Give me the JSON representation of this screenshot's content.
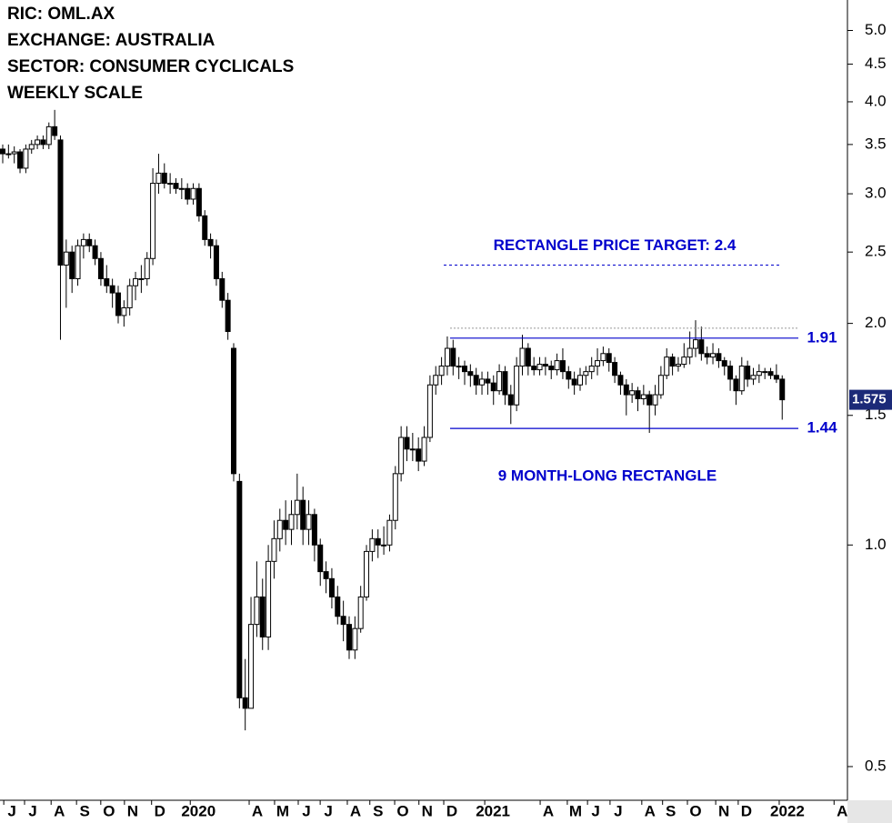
{
  "header": {
    "lines": [
      "RIC: OML.AX",
      "EXCHANGE: AUSTRALIA",
      "SECTOR: CONSUMER CYCLICALS",
      "WEEKLY SCALE"
    ]
  },
  "chart_data": {
    "type": "candlestick",
    "log_scale": true,
    "up_color": "#ffffff",
    "down_color": "#000000",
    "level_color": "#0000cc",
    "xlim": [
      -0.47,
      146.3
    ],
    "ylim": [
      0.45,
      5.5
    ],
    "yticks": [
      {
        "value": 0.5,
        "label": "0.5"
      },
      {
        "value": 1,
        "label": "1.0"
      },
      {
        "value": 1.5,
        "label": "1.5"
      },
      {
        "value": 2,
        "label": "2.0"
      },
      {
        "value": 2.5,
        "label": "2.5"
      },
      {
        "value": 3,
        "label": "3.0"
      },
      {
        "value": 3.5,
        "label": "3.5"
      },
      {
        "value": 4,
        "label": "4.0"
      },
      {
        "value": 4.5,
        "label": "4.5"
      },
      {
        "value": 5,
        "label": "5.0"
      }
    ],
    "xticks": [
      {
        "value": 1.6,
        "label": "J"
      },
      {
        "value": 5.2,
        "label": "J"
      },
      {
        "value": 9.8,
        "label": "A"
      },
      {
        "value": 14.2,
        "label": "S"
      },
      {
        "value": 18.4,
        "label": "O"
      },
      {
        "value": 22.5,
        "label": "N"
      },
      {
        "value": 27.2,
        "label": "D"
      },
      {
        "value": 33.9,
        "label": "2020"
      },
      {
        "value": 44.1,
        "label": "A"
      },
      {
        "value": 48.5,
        "label": "M"
      },
      {
        "value": 52.6,
        "label": "J"
      },
      {
        "value": 56.4,
        "label": "J"
      },
      {
        "value": 61.1,
        "label": "A"
      },
      {
        "value": 65.0,
        "label": "S"
      },
      {
        "value": 69.3,
        "label": "O"
      },
      {
        "value": 73.5,
        "label": "N"
      },
      {
        "value": 77.8,
        "label": "D"
      },
      {
        "value": 84.9,
        "label": "2021"
      },
      {
        "value": 94.5,
        "label": "A"
      },
      {
        "value": 99.2,
        "label": "M"
      },
      {
        "value": 102.7,
        "label": "J"
      },
      {
        "value": 106.6,
        "label": "J"
      },
      {
        "value": 112.1,
        "label": "A"
      },
      {
        "value": 115.7,
        "label": "S"
      },
      {
        "value": 120.0,
        "label": "O"
      },
      {
        "value": 124.9,
        "label": "N"
      },
      {
        "value": 128.8,
        "label": "D"
      },
      {
        "value": 135.9,
        "label": "2022"
      },
      {
        "value": 145.4,
        "label": "A"
      }
    ],
    "candles": [
      [
        3.45,
        3.5,
        3.3,
        3.4
      ],
      [
        3.4,
        3.5,
        3.35,
        3.4
      ],
      [
        3.4,
        3.48,
        3.3,
        3.42
      ],
      [
        3.42,
        3.45,
        3.2,
        3.25
      ],
      [
        3.25,
        3.5,
        3.2,
        3.45
      ],
      [
        3.45,
        3.55,
        3.4,
        3.5
      ],
      [
        3.5,
        3.6,
        3.45,
        3.55
      ],
      [
        3.55,
        3.6,
        3.45,
        3.5
      ],
      [
        3.5,
        3.75,
        3.45,
        3.7
      ],
      [
        3.7,
        3.9,
        3.55,
        3.6
      ],
      [
        3.55,
        3.6,
        1.9,
        2.4
      ],
      [
        2.4,
        2.6,
        2.1,
        2.5
      ],
      [
        2.5,
        2.55,
        2.2,
        2.3
      ],
      [
        2.3,
        2.6,
        2.25,
        2.55
      ],
      [
        2.55,
        2.65,
        2.45,
        2.6
      ],
      [
        2.6,
        2.65,
        2.5,
        2.55
      ],
      [
        2.55,
        2.6,
        2.4,
        2.45
      ],
      [
        2.45,
        2.5,
        2.25,
        2.3
      ],
      [
        2.3,
        2.4,
        2.2,
        2.25
      ],
      [
        2.25,
        2.3,
        2.1,
        2.2
      ],
      [
        2.2,
        2.25,
        2.0,
        2.05
      ],
      [
        2.05,
        2.15,
        1.98,
        2.1
      ],
      [
        2.1,
        2.3,
        2.05,
        2.25
      ],
      [
        2.25,
        2.35,
        2.15,
        2.3
      ],
      [
        2.3,
        2.4,
        2.2,
        2.3
      ],
      [
        2.3,
        2.5,
        2.25,
        2.45
      ],
      [
        2.45,
        3.25,
        2.4,
        3.1
      ],
      [
        3.1,
        3.4,
        3.0,
        3.2
      ],
      [
        3.2,
        3.3,
        3.05,
        3.1
      ],
      [
        3.1,
        3.2,
        3.0,
        3.1
      ],
      [
        3.1,
        3.15,
        3.0,
        3.05
      ],
      [
        3.05,
        3.15,
        2.95,
        3.05
      ],
      [
        3.05,
        3.1,
        2.9,
        2.95
      ],
      [
        2.95,
        3.1,
        2.9,
        3.05
      ],
      [
        3.05,
        3.1,
        2.75,
        2.8
      ],
      [
        2.8,
        2.85,
        2.55,
        2.6
      ],
      [
        2.6,
        2.65,
        2.45,
        2.55
      ],
      [
        2.55,
        2.6,
        2.25,
        2.3
      ],
      [
        2.3,
        2.35,
        2.1,
        2.15
      ],
      [
        2.15,
        2.2,
        1.9,
        1.95
      ],
      [
        1.85,
        1.88,
        1.22,
        1.25
      ],
      [
        1.22,
        1.25,
        0.6,
        0.62
      ],
      [
        0.62,
        0.7,
        0.56,
        0.6
      ],
      [
        0.6,
        0.85,
        0.6,
        0.78
      ],
      [
        0.78,
        0.95,
        0.75,
        0.85
      ],
      [
        0.85,
        0.9,
        0.72,
        0.75
      ],
      [
        0.75,
        1.0,
        0.72,
        0.95
      ],
      [
        0.95,
        1.08,
        0.9,
        1.02
      ],
      [
        1.02,
        1.12,
        0.98,
        1.08
      ],
      [
        1.08,
        1.15,
        1.0,
        1.05
      ],
      [
        1.05,
        1.15,
        1.0,
        1.1
      ],
      [
        1.1,
        1.25,
        1.05,
        1.15
      ],
      [
        1.15,
        1.2,
        1.0,
        1.05
      ],
      [
        1.05,
        1.15,
        1.0,
        1.1
      ],
      [
        1.1,
        1.12,
        0.95,
        1.0
      ],
      [
        1.0,
        1.02,
        0.88,
        0.92
      ],
      [
        0.92,
        0.95,
        0.86,
        0.9
      ],
      [
        0.9,
        0.93,
        0.82,
        0.85
      ],
      [
        0.85,
        0.88,
        0.78,
        0.8
      ],
      [
        0.8,
        0.84,
        0.74,
        0.78
      ],
      [
        0.78,
        0.8,
        0.7,
        0.72
      ],
      [
        0.72,
        0.8,
        0.7,
        0.77
      ],
      [
        0.77,
        0.88,
        0.76,
        0.85
      ],
      [
        0.85,
        1.0,
        0.84,
        0.98
      ],
      [
        0.98,
        1.05,
        0.95,
        1.02
      ],
      [
        1.02,
        1.05,
        0.96,
        1.0
      ],
      [
        1.0,
        1.06,
        0.97,
        1.0
      ],
      [
        1.0,
        1.1,
        0.98,
        1.08
      ],
      [
        1.08,
        1.28,
        1.05,
        1.25
      ],
      [
        1.25,
        1.45,
        1.22,
        1.4
      ],
      [
        1.4,
        1.45,
        1.3,
        1.35
      ],
      [
        1.35,
        1.42,
        1.3,
        1.35
      ],
      [
        1.35,
        1.4,
        1.26,
        1.3
      ],
      [
        1.3,
        1.45,
        1.28,
        1.4
      ],
      [
        1.4,
        1.7,
        1.38,
        1.65
      ],
      [
        1.65,
        1.75,
        1.6,
        1.7
      ],
      [
        1.7,
        1.8,
        1.65,
        1.75
      ],
      [
        1.75,
        1.92,
        1.7,
        1.85
      ],
      [
        1.85,
        1.9,
        1.7,
        1.75
      ],
      [
        1.75,
        1.8,
        1.68,
        1.75
      ],
      [
        1.75,
        1.78,
        1.65,
        1.72
      ],
      [
        1.72,
        1.76,
        1.64,
        1.7
      ],
      [
        1.7,
        1.74,
        1.6,
        1.65
      ],
      [
        1.65,
        1.72,
        1.6,
        1.68
      ],
      [
        1.68,
        1.72,
        1.6,
        1.66
      ],
      [
        1.66,
        1.7,
        1.55,
        1.62
      ],
      [
        1.62,
        1.76,
        1.6,
        1.72
      ],
      [
        1.72,
        1.75,
        1.55,
        1.6
      ],
      [
        1.6,
        1.65,
        1.46,
        1.55
      ],
      [
        1.55,
        1.8,
        1.52,
        1.75
      ],
      [
        1.75,
        1.93,
        1.7,
        1.85
      ],
      [
        1.85,
        1.88,
        1.7,
        1.75
      ],
      [
        1.75,
        1.8,
        1.7,
        1.73
      ],
      [
        1.73,
        1.8,
        1.7,
        1.76
      ],
      [
        1.76,
        1.8,
        1.7,
        1.75
      ],
      [
        1.75,
        1.78,
        1.68,
        1.73
      ],
      [
        1.73,
        1.82,
        1.7,
        1.78
      ],
      [
        1.78,
        1.85,
        1.68,
        1.72
      ],
      [
        1.72,
        1.75,
        1.63,
        1.68
      ],
      [
        1.68,
        1.72,
        1.6,
        1.65
      ],
      [
        1.65,
        1.74,
        1.62,
        1.7
      ],
      [
        1.7,
        1.75,
        1.65,
        1.72
      ],
      [
        1.72,
        1.8,
        1.68,
        1.75
      ],
      [
        1.75,
        1.85,
        1.7,
        1.78
      ],
      [
        1.78,
        1.86,
        1.75,
        1.82
      ],
      [
        1.82,
        1.85,
        1.72,
        1.77
      ],
      [
        1.77,
        1.8,
        1.66,
        1.7
      ],
      [
        1.7,
        1.72,
        1.6,
        1.65
      ],
      [
        1.65,
        1.68,
        1.5,
        1.6
      ],
      [
        1.6,
        1.66,
        1.56,
        1.62
      ],
      [
        1.62,
        1.64,
        1.52,
        1.58
      ],
      [
        1.58,
        1.65,
        1.55,
        1.6
      ],
      [
        1.6,
        1.62,
        1.42,
        1.55
      ],
      [
        1.55,
        1.65,
        1.5,
        1.6
      ],
      [
        1.6,
        1.75,
        1.58,
        1.7
      ],
      [
        1.7,
        1.85,
        1.68,
        1.8
      ],
      [
        1.8,
        1.82,
        1.7,
        1.75
      ],
      [
        1.75,
        1.8,
        1.72,
        1.76
      ],
      [
        1.76,
        1.88,
        1.74,
        1.8
      ],
      [
        1.8,
        1.95,
        1.76,
        1.85
      ],
      [
        1.85,
        2.02,
        1.8,
        1.9
      ],
      [
        1.9,
        1.98,
        1.78,
        1.82
      ],
      [
        1.82,
        1.86,
        1.76,
        1.8
      ],
      [
        1.8,
        1.88,
        1.76,
        1.82
      ],
      [
        1.82,
        1.85,
        1.74,
        1.78
      ],
      [
        1.78,
        1.8,
        1.7,
        1.75
      ],
      [
        1.75,
        1.78,
        1.62,
        1.68
      ],
      [
        1.68,
        1.7,
        1.55,
        1.62
      ],
      [
        1.62,
        1.8,
        1.6,
        1.75
      ],
      [
        1.75,
        1.78,
        1.64,
        1.68
      ],
      [
        1.68,
        1.74,
        1.65,
        1.7
      ],
      [
        1.7,
        1.76,
        1.66,
        1.72
      ],
      [
        1.72,
        1.74,
        1.68,
        1.72
      ],
      [
        1.72,
        1.74,
        1.68,
        1.7
      ],
      [
        1.7,
        1.76,
        1.66,
        1.68
      ],
      [
        1.68,
        1.7,
        1.48,
        1.575
      ]
    ],
    "levels": [
      {
        "value": 1.91,
        "label": "1.91"
      },
      {
        "value": 1.44,
        "label": "1.44"
      }
    ],
    "resistance_dotted": 1.97,
    "target": {
      "value": 2.4,
      "text": "RECTANGLE PRICE TARGET: 2.4"
    },
    "annotation": "9 MONTH-LONG RECTANGLE",
    "last_price": 1.575
  }
}
